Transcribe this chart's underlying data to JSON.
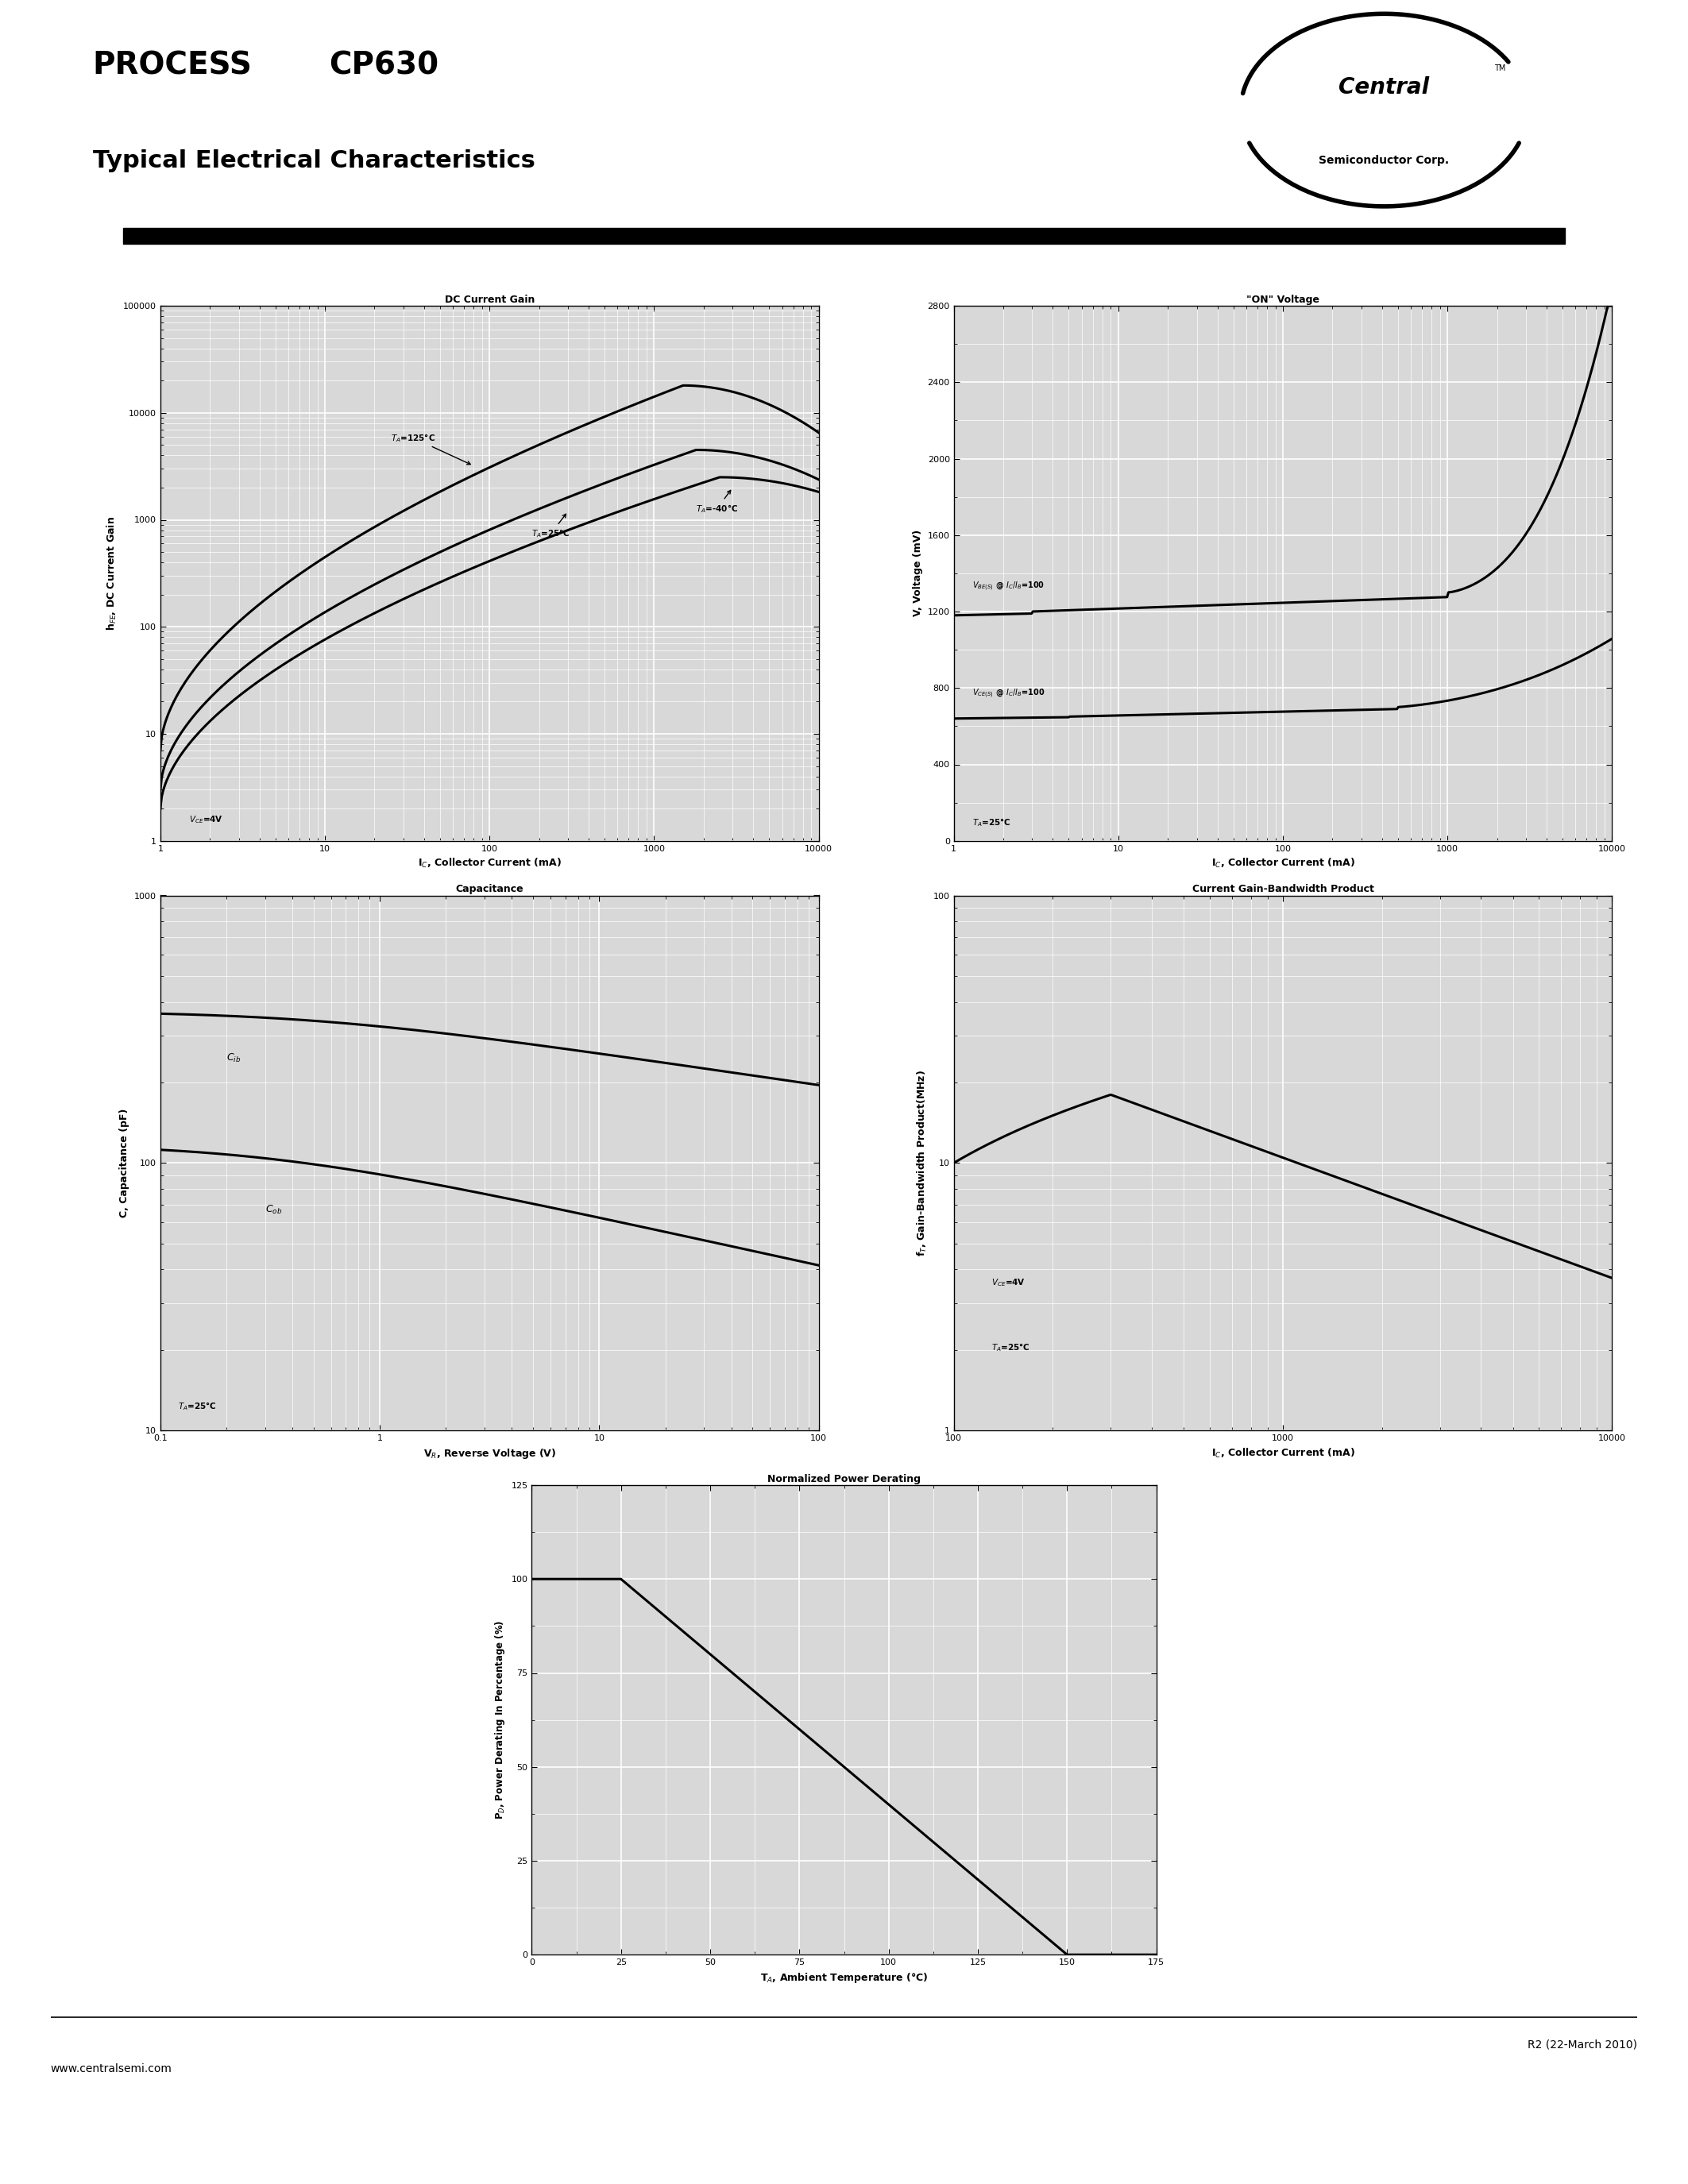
{
  "bg_color": "#ffffff",
  "graph_bg": "#d8d8d8",
  "grid_color": "#ffffff",
  "header_process": "PROCESS",
  "header_model": "CP630",
  "header_subtitle": "Typical Electrical Characteristics",
  "logo_central": "Central",
  "logo_semi": "Semiconductor Corp.",
  "footer_left": "www.centralsemi.com",
  "footer_right": "R2 (22-March 2010)",
  "p1_title": "DC Current Gain",
  "p1_xlabel": "I$_C$, Collector Current (mA)",
  "p1_ylabel": "h$_{FE}$, DC Current Gain",
  "p1_xlim": [
    1,
    10000
  ],
  "p1_ylim": [
    1,
    100000
  ],
  "p2_title": "\"ON\" Voltage",
  "p2_xlabel": "I$_C$, Collector Current (mA)",
  "p2_ylabel": "V, Voltage (mV)",
  "p2_xlim": [
    1,
    10000
  ],
  "p2_ylim": [
    0,
    2800
  ],
  "p3_title": "Capacitance",
  "p3_xlabel": "V$_R$, Reverse Voltage (V)",
  "p3_ylabel": "C, Capacitance (pF)",
  "p3_xlim": [
    0.1,
    100
  ],
  "p3_ylim": [
    10,
    1000
  ],
  "p4_title": "Current Gain-Bandwidth Product",
  "p4_xlabel": "I$_C$, Collector Current (mA)",
  "p4_ylabel": "f$_T$, Gain-Bandwidth Product(MHz)",
  "p4_xlim": [
    100,
    10000
  ],
  "p4_ylim": [
    1,
    100
  ],
  "p5_title": "Normalized Power Derating",
  "p5_xlabel": "T$_A$, Ambient Temperature (°C)",
  "p5_ylabel": "P$_D$, Power Derating In Percentage (%)",
  "p5_xlim": [
    0,
    175
  ],
  "p5_ylim": [
    0,
    125
  ]
}
